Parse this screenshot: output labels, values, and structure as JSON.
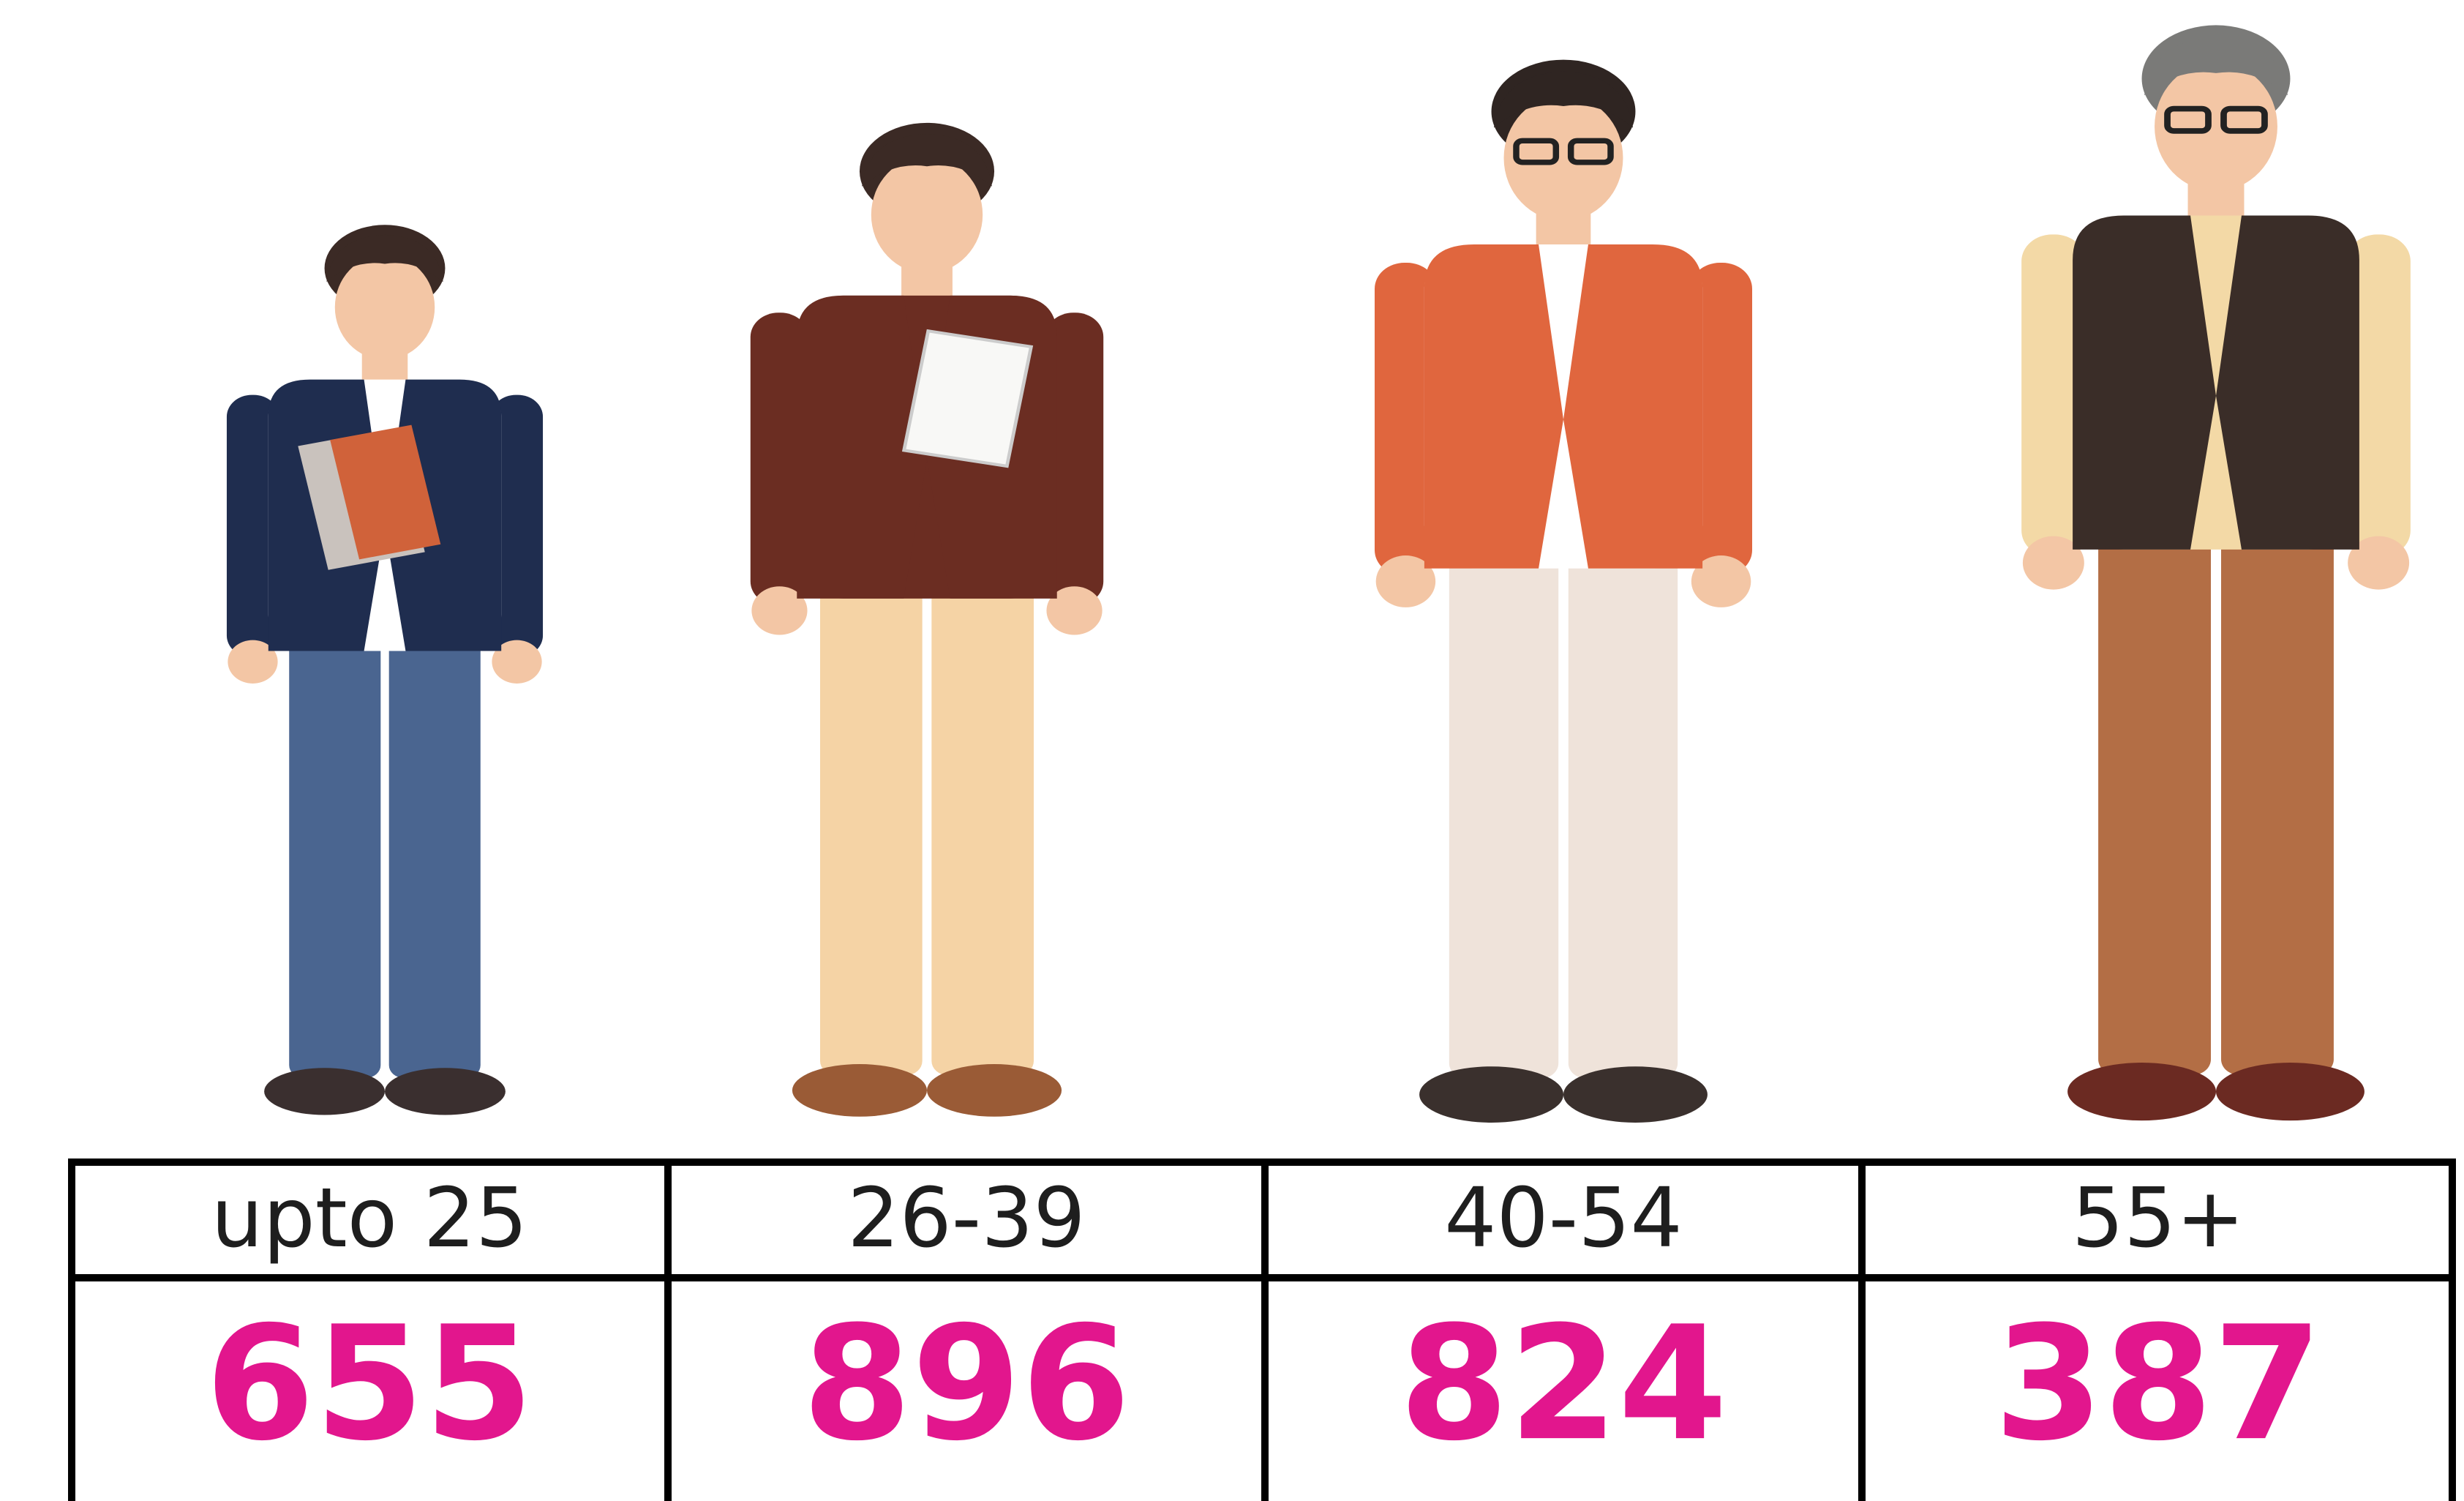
{
  "table": {
    "rows": [
      [
        "upto 25",
        "26-39",
        "40-54",
        "55+"
      ],
      [
        655,
        896,
        824,
        387
      ]
    ]
  }
}
